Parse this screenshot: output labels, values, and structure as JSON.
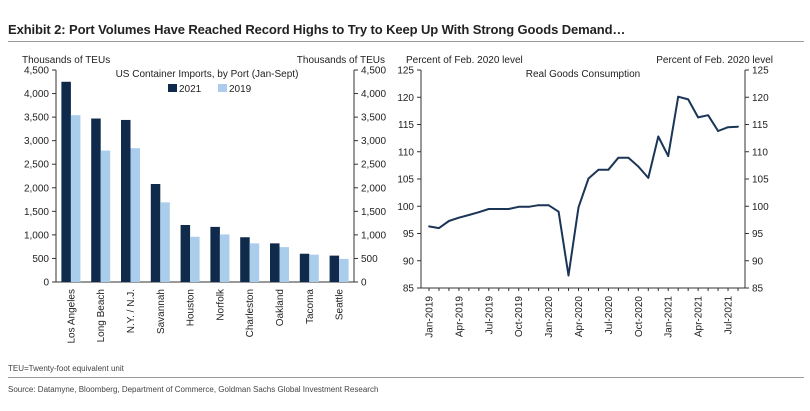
{
  "header": {
    "title": "Exhibit 2: Port Volumes Have Reached Record Highs to Try to Keep Up With Strong Goods Demand…"
  },
  "footnote": "TEU=Twenty-foot equivalent unit",
  "source": "Source: Datamyne, Bloomberg, Department of Commerce, Goldman Sachs Global Investment Research",
  "colors": {
    "series_2021": "#0f2a4a",
    "series_2019": "#a9cdeb",
    "line": "#1b3557"
  },
  "chart_data": [
    {
      "type": "bar",
      "title": "US Container Imports, by Port (Jan-Sept)",
      "ylabel_left": "Thousands of TEUs",
      "ylabel_right": "Thousands of TEUs",
      "ylim": [
        0,
        4500
      ],
      "yticks": [
        "0",
        "500",
        "1,000",
        "1,500",
        "2,000",
        "2,500",
        "3,000",
        "3,500",
        "4,000",
        "4,500"
      ],
      "yticks_right": [
        "0",
        "500",
        "1,000",
        "1,500",
        "2,000",
        "2,500",
        "3,000",
        "3,500",
        "4,000",
        "4,500"
      ],
      "categories": [
        "Los Angeles",
        "Long Beach",
        "N.Y. / N.J.",
        "Savannah",
        "Houston",
        "Norfolk",
        "Charleston",
        "Oakland",
        "Tacoma",
        "Seattle"
      ],
      "series": [
        {
          "name": "2021",
          "values": [
            4250,
            3470,
            3440,
            2080,
            1210,
            1170,
            950,
            820,
            600,
            560
          ]
        },
        {
          "name": "2019",
          "values": [
            3540,
            2790,
            2840,
            1690,
            960,
            1010,
            820,
            740,
            580,
            490
          ]
        }
      ],
      "legend": "top",
      "grid": false
    },
    {
      "type": "line",
      "title": "Real Goods Consumption",
      "ylabel_left": "Percent of Feb. 2020 level",
      "ylabel_right": "Percent of Feb. 2020 level",
      "ylim": [
        85,
        125
      ],
      "yticks": [
        "85",
        "90",
        "95",
        "100",
        "105",
        "110",
        "115",
        "120",
        "125"
      ],
      "yticks_right": [
        "85",
        "90",
        "95",
        "100",
        "105",
        "110",
        "115",
        "120",
        "125"
      ],
      "xtick_labels": [
        "Jan-2019",
        "Apr-2019",
        "Jul-2019",
        "Oct-2019",
        "Jan-2020",
        "Apr-2020",
        "Jul-2020",
        "Oct-2020",
        "Jan-2021",
        "Apr-2021",
        "Jul-2021"
      ],
      "x": [
        "Jan-2019",
        "Feb-2019",
        "Mar-2019",
        "Apr-2019",
        "May-2019",
        "Jun-2019",
        "Jul-2019",
        "Aug-2019",
        "Sep-2019",
        "Oct-2019",
        "Nov-2019",
        "Dec-2019",
        "Jan-2020",
        "Feb-2020",
        "Mar-2020",
        "Apr-2020",
        "May-2020",
        "Jun-2020",
        "Jul-2020",
        "Aug-2020",
        "Sep-2020",
        "Oct-2020",
        "Nov-2020",
        "Dec-2020",
        "Jan-2021",
        "Feb-2021",
        "Mar-2021",
        "Apr-2021",
        "May-2021",
        "Jun-2021",
        "Jul-2021",
        "Aug-2021"
      ],
      "series": [
        {
          "values": [
            96.3,
            96.0,
            97.3,
            97.9,
            98.4,
            98.9,
            99.5,
            99.5,
            99.5,
            99.9,
            99.9,
            100.2,
            100.2,
            99.0,
            87.3,
            99.8,
            105.1,
            106.7,
            106.7,
            108.9,
            108.9,
            107.3,
            105.2,
            112.8,
            109.2,
            120.1,
            119.6,
            116.3,
            116.7,
            113.8,
            114.5,
            114.6
          ]
        }
      ],
      "grid": false
    }
  ]
}
